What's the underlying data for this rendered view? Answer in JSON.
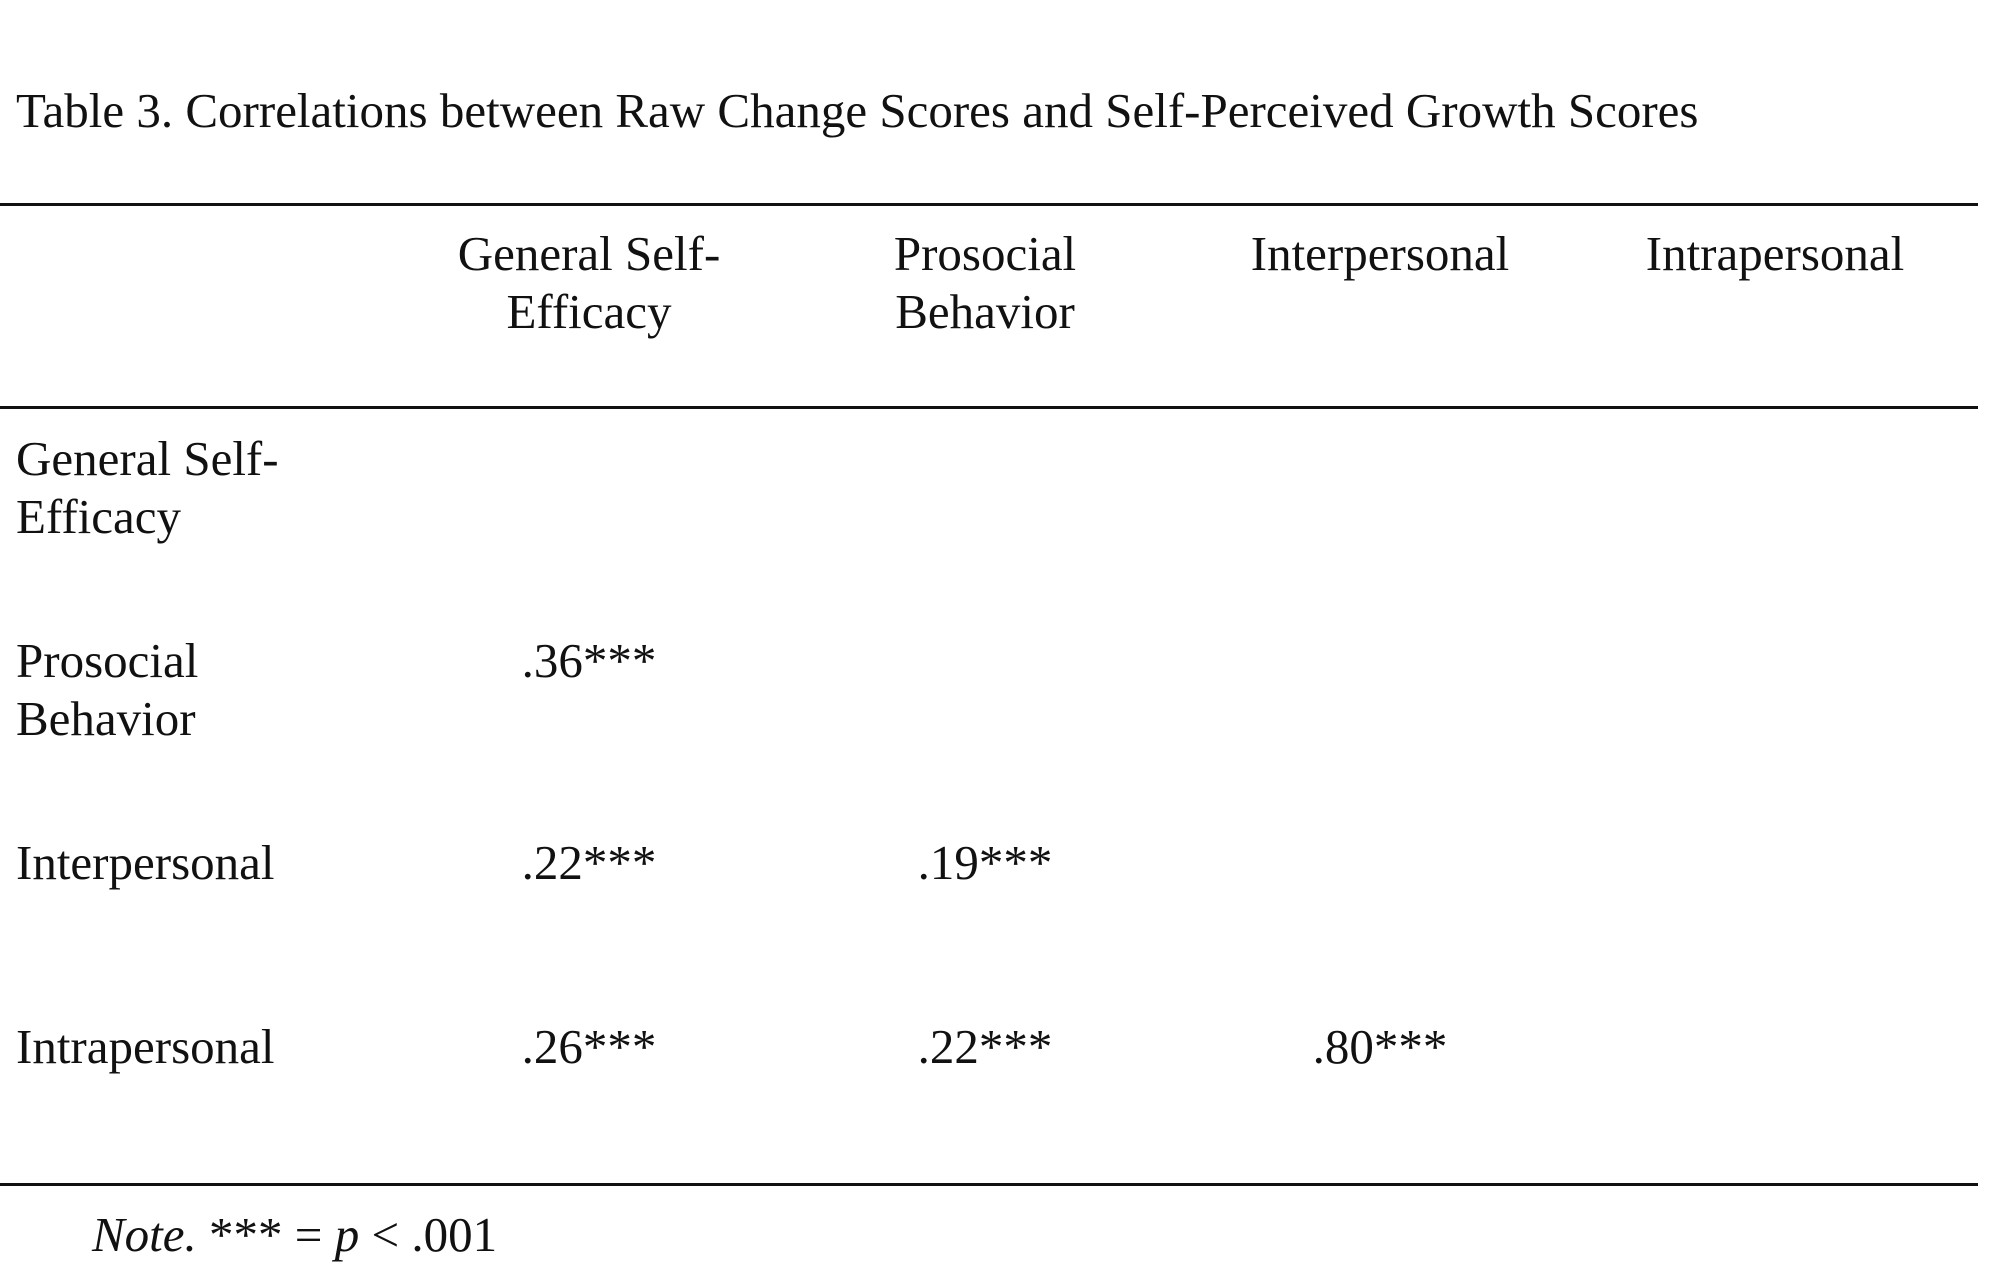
{
  "caption": "Table 3. Correlations between Raw Change Scores and Self-Perceived Growth Scores",
  "columns": [
    {
      "line1": "General Self-",
      "line2": "Efficacy"
    },
    {
      "line1": "Prosocial",
      "line2": "Behavior"
    },
    {
      "line1": "Interpersonal",
      "line2": ""
    },
    {
      "line1": "Intrapersonal",
      "line2": ""
    }
  ],
  "rows": [
    {
      "line1": "General Self-",
      "line2": "Efficacy",
      "values": [
        "",
        "",
        "",
        ""
      ]
    },
    {
      "line1": "Prosocial",
      "line2": "Behavior",
      "values": [
        ".36***",
        "",
        "",
        ""
      ]
    },
    {
      "line1": "Interpersonal",
      "line2": "",
      "values": [
        ".22***",
        ".19***",
        "",
        ""
      ]
    },
    {
      "line1": "Intrapersonal",
      "line2": "",
      "values": [
        ".26***",
        ".22***",
        ".80***",
        ""
      ]
    }
  ],
  "note": {
    "label": "Note.",
    "stars": "*** =",
    "p": "p",
    "rest": "< .001"
  }
}
